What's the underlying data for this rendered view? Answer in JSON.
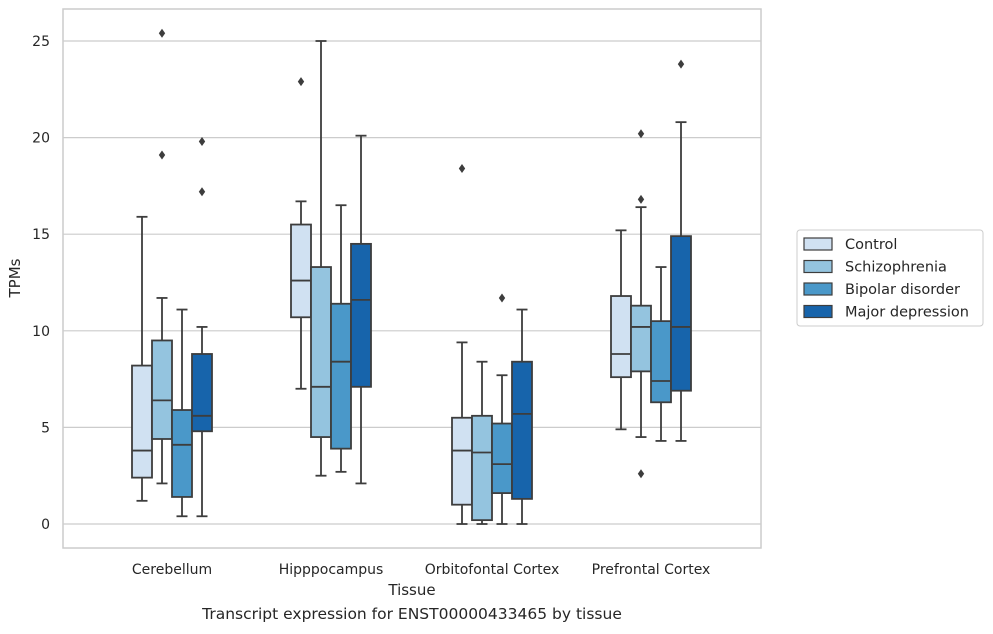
{
  "caption": "Transcript expression for ENST00000433465 by tissue",
  "chart_data": {
    "type": "box",
    "xlabel": "Tissue",
    "ylabel": "TPMs",
    "ylim": [
      -1.2,
      26.6
    ],
    "yticks": [
      0,
      5,
      10,
      15,
      20,
      25
    ],
    "grid": "horizontal",
    "legend_position": "right",
    "categories": [
      "Cerebellum",
      "Hipppocampus",
      "Orbitofontal Cortex",
      "Prefrontal Cortex"
    ],
    "series": [
      {
        "name": "Control",
        "color": "#d0e1f2",
        "boxes": [
          {
            "whislo": 1.2,
            "q1": 2.4,
            "med": 3.8,
            "q3": 8.2,
            "whishi": 15.9,
            "fliers": []
          },
          {
            "whislo": 7.0,
            "q1": 10.7,
            "med": 12.6,
            "q3": 15.5,
            "whishi": 16.7,
            "fliers": [
              22.9
            ]
          },
          {
            "whislo": 0.0,
            "q1": 1.0,
            "med": 3.8,
            "q3": 5.5,
            "whishi": 9.4,
            "fliers": [
              18.4
            ]
          },
          {
            "whislo": 4.9,
            "q1": 7.6,
            "med": 8.8,
            "q3": 11.8,
            "whishi": 15.2,
            "fliers": []
          }
        ]
      },
      {
        "name": "Schizophrenia",
        "color": "#94c4df",
        "boxes": [
          {
            "whislo": 2.1,
            "q1": 4.4,
            "med": 6.4,
            "q3": 9.5,
            "whishi": 11.7,
            "fliers": [
              19.1,
              25.4
            ]
          },
          {
            "whislo": 2.5,
            "q1": 4.5,
            "med": 7.1,
            "q3": 13.3,
            "whishi": 25.0,
            "fliers": []
          },
          {
            "whislo": 0.0,
            "q1": 0.2,
            "med": 3.7,
            "q3": 5.6,
            "whishi": 8.4,
            "fliers": []
          },
          {
            "whislo": 4.5,
            "q1": 7.9,
            "med": 10.2,
            "q3": 11.3,
            "whishi": 16.4,
            "fliers": [
              2.6,
              16.8,
              20.2
            ]
          }
        ]
      },
      {
        "name": "Bipolar disorder",
        "color": "#4a98c9",
        "boxes": [
          {
            "whislo": 0.4,
            "q1": 1.4,
            "med": 4.1,
            "q3": 5.9,
            "whishi": 11.1,
            "fliers": []
          },
          {
            "whislo": 2.7,
            "q1": 3.9,
            "med": 8.4,
            "q3": 11.4,
            "whishi": 16.5,
            "fliers": []
          },
          {
            "whislo": 0.0,
            "q1": 1.6,
            "med": 3.1,
            "q3": 5.2,
            "whishi": 7.7,
            "fliers": [
              11.7
            ]
          },
          {
            "whislo": 4.3,
            "q1": 6.3,
            "med": 7.4,
            "q3": 10.5,
            "whishi": 13.3,
            "fliers": []
          }
        ]
      },
      {
        "name": "Major depression",
        "color": "#1764ab",
        "boxes": [
          {
            "whislo": 0.4,
            "q1": 4.8,
            "med": 5.6,
            "q3": 8.8,
            "whishi": 10.2,
            "fliers": [
              17.2,
              19.8
            ]
          },
          {
            "whislo": 2.1,
            "q1": 7.1,
            "med": 11.6,
            "q3": 14.5,
            "whishi": 20.1,
            "fliers": []
          },
          {
            "whislo": 0.0,
            "q1": 1.3,
            "med": 5.7,
            "q3": 8.4,
            "whishi": 11.1,
            "fliers": []
          },
          {
            "whislo": 4.3,
            "q1": 6.9,
            "med": 10.2,
            "q3": 14.9,
            "whishi": 20.8,
            "fliers": [
              23.8
            ]
          }
        ]
      }
    ]
  }
}
